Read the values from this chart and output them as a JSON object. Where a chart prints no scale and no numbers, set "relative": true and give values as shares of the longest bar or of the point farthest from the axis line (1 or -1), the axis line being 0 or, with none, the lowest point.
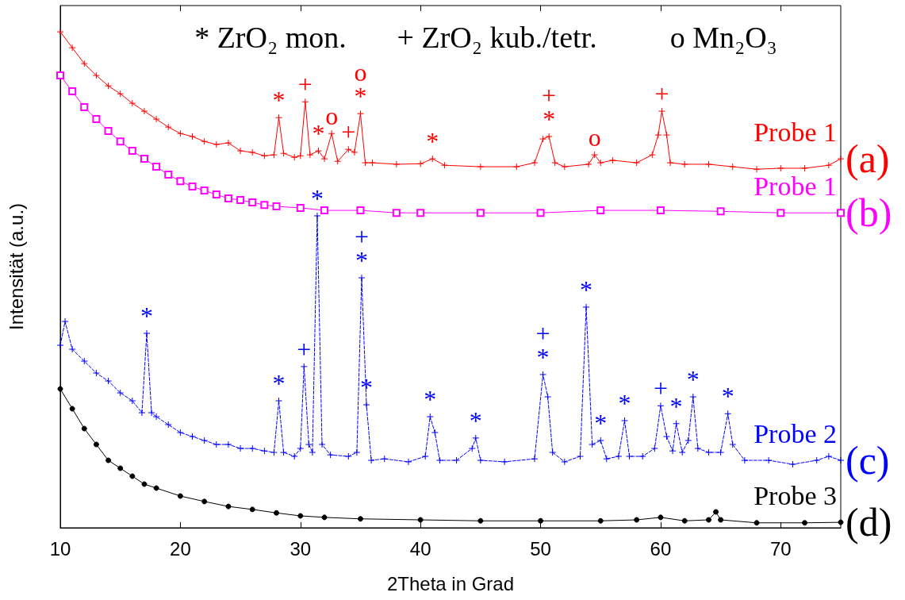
{
  "chart_data": {
    "type": "line",
    "relative": true,
    "xlabel": "2Theta in Grad",
    "ylabel": "Intensität (a.u.)",
    "xlim": [
      10,
      75
    ],
    "xticks": [
      10,
      20,
      30,
      40,
      50,
      60,
      70
    ],
    "grid": false,
    "series": [
      {
        "name": "Probe 1",
        "color": "#ff0000",
        "marker": "cross",
        "line_style": "solid",
        "x": [
          10,
          11,
          12,
          13,
          14,
          15,
          16,
          17,
          18,
          19,
          20,
          21,
          22,
          23,
          24,
          25,
          26,
          27,
          27.8,
          28.2,
          28.6,
          29.5,
          30,
          30.4,
          30.8,
          31.5,
          32,
          32.6,
          33.1,
          34,
          34.5,
          35,
          35.4,
          36,
          38,
          40,
          41,
          42,
          45,
          48,
          49.5,
          50.2,
          50.7,
          51.2,
          52,
          54,
          54.5,
          55,
          56,
          58,
          59.3,
          59.8,
          60.1,
          60.5,
          60.8,
          62,
          64,
          66,
          68,
          70,
          72,
          74,
          75
        ],
        "values": [
          1.0,
          0.968,
          0.936,
          0.912,
          0.891,
          0.875,
          0.856,
          0.84,
          0.824,
          0.808,
          0.795,
          0.789,
          0.779,
          0.773,
          0.776,
          0.76,
          0.757,
          0.75,
          0.752,
          0.827,
          0.755,
          0.747,
          0.75,
          0.859,
          0.752,
          0.76,
          0.744,
          0.795,
          0.739,
          0.763,
          0.757,
          0.835,
          0.736,
          0.736,
          0.733,
          0.734,
          0.744,
          0.731,
          0.728,
          0.728,
          0.736,
          0.784,
          0.789,
          0.736,
          0.728,
          0.733,
          0.752,
          0.736,
          0.741,
          0.736,
          0.752,
          0.792,
          0.84,
          0.792,
          0.736,
          0.733,
          0.733,
          0.728,
          0.723,
          0.725,
          0.725,
          0.731,
          0.744
        ]
      },
      {
        "name": "Probe 1",
        "color": "#ff00ff",
        "marker": "square",
        "line_style": "solid",
        "x": [
          10,
          11,
          12,
          13,
          14,
          15,
          16,
          17,
          18,
          19,
          20,
          21,
          22,
          23,
          24,
          25,
          26,
          27,
          28,
          30,
          32,
          35,
          38,
          40,
          45,
          50,
          55,
          60,
          65,
          70,
          75
        ],
        "values": [
          0.912,
          0.88,
          0.848,
          0.824,
          0.8,
          0.779,
          0.76,
          0.744,
          0.728,
          0.712,
          0.699,
          0.688,
          0.68,
          0.672,
          0.664,
          0.661,
          0.656,
          0.651,
          0.648,
          0.645,
          0.64,
          0.64,
          0.635,
          0.635,
          0.635,
          0.635,
          0.64,
          0.64,
          0.638,
          0.635,
          0.635
        ]
      },
      {
        "name": "Probe 2",
        "color": "#0000ff",
        "marker": "cross",
        "line_style": "dashed",
        "x": [
          10,
          10.4,
          11,
          12,
          13,
          14,
          15,
          16,
          16.8,
          17.2,
          17.6,
          18,
          19,
          20,
          21,
          22,
          23,
          24,
          25,
          26,
          27,
          27.8,
          28.2,
          28.6,
          29.5,
          30,
          30.3,
          30.7,
          31,
          31.4,
          31.8,
          32.5,
          34,
          34.7,
          35.1,
          35.5,
          35.9,
          37,
          39,
          40.4,
          40.8,
          41.2,
          41.6,
          43,
          44.3,
          44.6,
          45,
          47,
          49.5,
          50.2,
          50.6,
          51,
          52,
          53.3,
          53.8,
          54.3,
          55,
          55.5,
          56.5,
          57,
          57.4,
          58.5,
          59.5,
          60,
          60.5,
          61,
          61.3,
          61.8,
          62.3,
          62.7,
          63.1,
          64,
          65,
          65.6,
          66,
          67,
          69,
          71,
          73,
          74,
          75
        ],
        "values": [
          0.368,
          0.416,
          0.36,
          0.336,
          0.312,
          0.296,
          0.272,
          0.256,
          0.232,
          0.392,
          0.232,
          0.224,
          0.208,
          0.192,
          0.184,
          0.176,
          0.168,
          0.168,
          0.16,
          0.16,
          0.155,
          0.152,
          0.256,
          0.152,
          0.144,
          0.16,
          0.325,
          0.168,
          0.152,
          0.629,
          0.168,
          0.147,
          0.144,
          0.152,
          0.504,
          0.248,
          0.136,
          0.139,
          0.133,
          0.144,
          0.224,
          0.192,
          0.136,
          0.136,
          0.16,
          0.181,
          0.136,
          0.133,
          0.139,
          0.309,
          0.264,
          0.152,
          0.133,
          0.144,
          0.445,
          0.168,
          0.176,
          0.139,
          0.144,
          0.216,
          0.144,
          0.144,
          0.16,
          0.246,
          0.184,
          0.155,
          0.21,
          0.152,
          0.176,
          0.264,
          0.16,
          0.152,
          0.152,
          0.23,
          0.168,
          0.136,
          0.136,
          0.128,
          0.136,
          0.144,
          0.136
        ]
      },
      {
        "name": "Probe 3",
        "color": "#000000",
        "marker": "circle",
        "line_style": "solid",
        "x": [
          10,
          11,
          12,
          13,
          14,
          15,
          16,
          17,
          18,
          20,
          22,
          24,
          26,
          28,
          30,
          32,
          35,
          40,
          45,
          50,
          55,
          58,
          60,
          62,
          64,
          64.6,
          65,
          68,
          72,
          75
        ],
        "values": [
          0.28,
          0.24,
          0.2,
          0.168,
          0.136,
          0.12,
          0.104,
          0.088,
          0.08,
          0.064,
          0.053,
          0.043,
          0.037,
          0.03,
          0.024,
          0.021,
          0.018,
          0.016,
          0.014,
          0.014,
          0.014,
          0.016,
          0.021,
          0.014,
          0.016,
          0.032,
          0.016,
          0.01,
          0.01,
          0.011
        ]
      }
    ],
    "annotations": [
      "* ZrO₂ mon.",
      "+ ZrO₂ kub./tetr.",
      "o Mn₂O₃",
      {
        "text": "*",
        "x": 28.2,
        "y": 0.827
      },
      {
        "text": "+",
        "x": 30.4,
        "y": 0.859
      },
      {
        "text": "*",
        "x": 31.5,
        "y": 0.76
      },
      {
        "text": "o",
        "x": 32.6,
        "y": 0.795
      },
      {
        "text": "+",
        "x": 34,
        "y": 0.763
      },
      {
        "text": "*",
        "x": 35,
        "y": 0.835
      },
      {
        "text": "o",
        "x": 35,
        "y": 0.835
      },
      {
        "text": "*",
        "x": 41,
        "y": 0.744
      },
      {
        "text": "*",
        "x": 50.7,
        "y": 0.789
      },
      {
        "text": "+",
        "x": 50.7,
        "y": 0.789
      },
      {
        "text": "o",
        "x": 54.5,
        "y": 0.752
      },
      {
        "text": "+",
        "x": 60.1,
        "y": 0.84
      },
      {
        "text": "*",
        "x": 17.2,
        "y": 0.392
      },
      {
        "text": "*",
        "x": 28.2,
        "y": 0.256
      },
      {
        "text": "+",
        "x": 30.3,
        "y": 0.325
      },
      {
        "text": "*",
        "x": 31.4,
        "y": 0.629
      },
      {
        "text": "*",
        "x": 35.1,
        "y": 0.504
      },
      {
        "text": "+",
        "x": 35.1,
        "y": 0.504
      },
      {
        "text": "*",
        "x": 35.5,
        "y": 0.248
      },
      {
        "text": "*",
        "x": 40.8,
        "y": 0.224
      },
      {
        "text": "*",
        "x": 44.6,
        "y": 0.181
      },
      {
        "text": "*",
        "x": 50.2,
        "y": 0.309
      },
      {
        "text": "+",
        "x": 50.2,
        "y": 0.309
      },
      {
        "text": "*",
        "x": 53.8,
        "y": 0.445
      },
      {
        "text": "*",
        "x": 55,
        "y": 0.176
      },
      {
        "text": "*",
        "x": 57,
        "y": 0.216
      },
      {
        "text": "+",
        "x": 60,
        "y": 0.246
      },
      {
        "text": "*",
        "x": 61.3,
        "y": 0.21
      },
      {
        "text": "*",
        "x": 62.7,
        "y": 0.264
      },
      {
        "text": "*",
        "x": 65.6,
        "y": 0.23
      },
      {
        "text": "(a)",
        "x": 75,
        "y": 0.744
      },
      {
        "text": "(b)",
        "x": 75,
        "y": 0.635
      },
      {
        "text": "(c)",
        "x": 75,
        "y": 0.136
      },
      {
        "text": "(d)",
        "x": 75,
        "y": 0.011
      }
    ]
  }
}
